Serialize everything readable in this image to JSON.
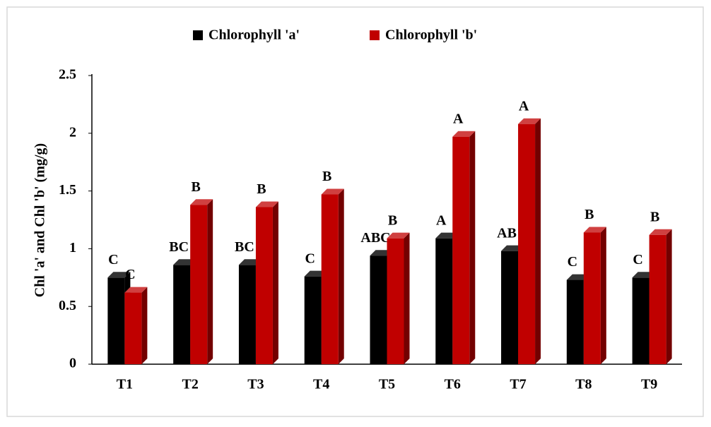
{
  "chart_data": {
    "type": "bar3d",
    "y_label": "Chl 'a' and Chl 'b' (mg/g)",
    "categories": [
      "T1",
      "T2",
      "T3",
      "T4",
      "T5",
      "T6",
      "T7",
      "T8",
      "T9"
    ],
    "series": [
      {
        "name": "Chlorophyll 'a'",
        "color": "#000000",
        "values": [
          0.75,
          0.86,
          0.86,
          0.76,
          0.94,
          1.09,
          0.98,
          0.73,
          0.75
        ],
        "letters": [
          "C",
          "BC",
          "BC",
          "C",
          "ABC",
          "A",
          "AB",
          "C",
          "C"
        ]
      },
      {
        "name": "Chlorophyll 'b'",
        "color": "#c00000",
        "values": [
          0.62,
          1.38,
          1.36,
          1.47,
          1.09,
          1.97,
          2.08,
          1.14,
          1.12
        ],
        "letters": [
          "C",
          "B",
          "B",
          "B",
          "B",
          "A",
          "A",
          "B",
          "B"
        ]
      }
    ],
    "ylim": [
      0,
      2.5
    ],
    "yticks": [
      0,
      0.5,
      1,
      1.5,
      2,
      2.5
    ],
    "grid": false,
    "legend": "top"
  }
}
